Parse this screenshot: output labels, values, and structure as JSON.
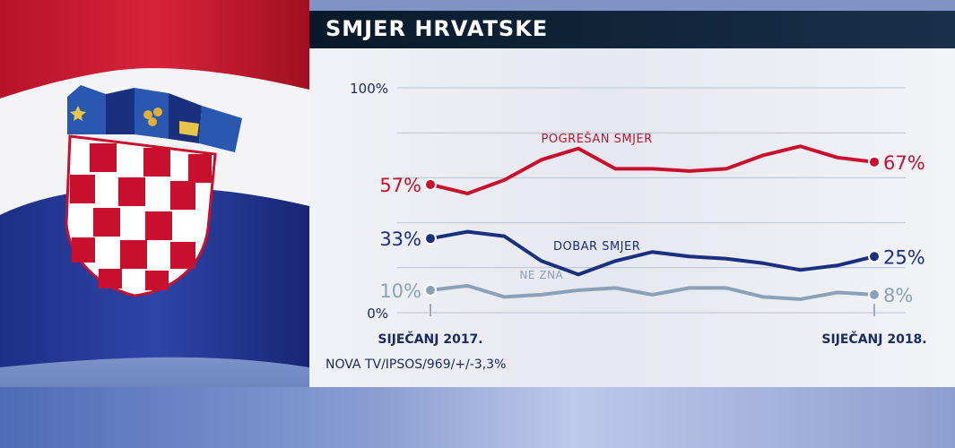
{
  "title": "SMJER HRVATSKE",
  "source": "NOVA TV/IPSOS/969/+/-3,3%",
  "chart_data": {
    "type": "line",
    "title": "SMJER HRVATSKE",
    "ylim": [
      0,
      100
    ],
    "yticks": [
      "100%",
      "0%"
    ],
    "x_start_label": "SIJEČANJ 2017.",
    "x_end_label": "SIJEČANJ 2018.",
    "grid": true,
    "series": [
      {
        "name": "POGREŠAN SMJER",
        "color": "#c8102e",
        "values": [
          57,
          53,
          59,
          68,
          73,
          64,
          64,
          63,
          64,
          70,
          74,
          69,
          67
        ],
        "start_label": "57%",
        "end_label": "67%"
      },
      {
        "name": "DOBAR SMJER",
        "color": "#1a2f7d",
        "values": [
          33,
          36,
          34,
          23,
          17,
          23,
          27,
          25,
          24,
          22,
          19,
          21,
          25
        ],
        "start_label": "33%",
        "end_label": "25%"
      },
      {
        "name": "NE ZNA",
        "color": "#8aa1b8",
        "values": [
          10,
          12,
          7,
          8,
          10,
          11,
          8,
          11,
          11,
          7,
          6,
          9,
          8
        ],
        "start_label": "10%",
        "end_label": "8%"
      }
    ]
  }
}
